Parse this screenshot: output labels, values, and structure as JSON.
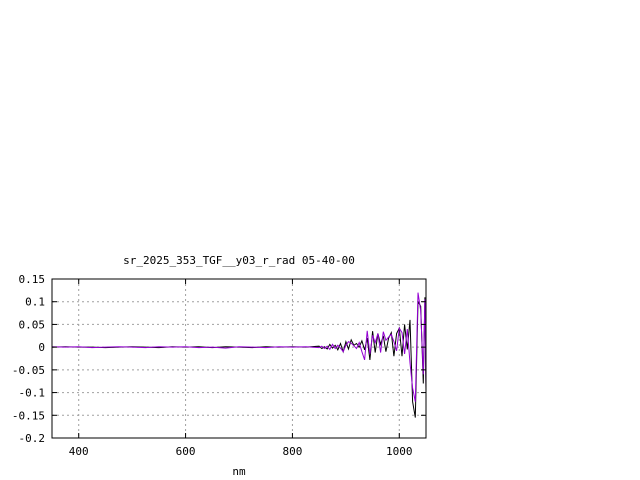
{
  "chart_data": {
    "type": "line",
    "title": "sr_2025_353_TGF__y03_r_rad 05-40-00",
    "xlabel": "nm",
    "ylabel": "",
    "xlim": [
      350,
      1050
    ],
    "ylim": [
      -0.2,
      0.15
    ],
    "xticks": [
      400,
      600,
      800,
      1000
    ],
    "yticks": [
      -0.2,
      -0.15,
      -0.1,
      -0.05,
      0,
      0.05,
      0.1,
      0.15
    ],
    "ytick_labels": [
      "-0.2",
      "-0.15",
      "-0.1",
      "-0.05",
      "0",
      "0.05",
      "0.1",
      "0.15"
    ],
    "grid": true,
    "colors": {
      "series_back": "#000000",
      "series_front": "#9400d3",
      "grid": "#a0a0a0"
    },
    "x": [
      350,
      375,
      400,
      425,
      450,
      475,
      500,
      525,
      550,
      575,
      600,
      625,
      650,
      675,
      700,
      725,
      750,
      775,
      800,
      825,
      850,
      855,
      860,
      865,
      870,
      875,
      880,
      885,
      890,
      895,
      900,
      905,
      910,
      915,
      920,
      925,
      930,
      935,
      940,
      945,
      950,
      955,
      960,
      965,
      970,
      975,
      980,
      985,
      990,
      995,
      1000,
      1005,
      1010,
      1015,
      1020,
      1025,
      1030,
      1035,
      1040,
      1045,
      1048,
      1050
    ],
    "series": [
      {
        "values": [
          0,
          0.001,
          0,
          0,
          -0.001,
          0,
          0.001,
          0,
          -0.001,
          0.001,
          0,
          0.001,
          -0.001,
          0.001,
          0,
          -0.001,
          0.001,
          0,
          0.001,
          0,
          0.002,
          -0.003,
          0.001,
          -0.004,
          0.006,
          -0.002,
          0.004,
          -0.006,
          0.008,
          -0.01,
          0.012,
          -0.004,
          0.016,
          0.004,
          0.008,
          0,
          0.014,
          -0.006,
          0.02,
          -0.028,
          0.035,
          -0.012,
          0.03,
          0.006,
          0.025,
          -0.01,
          0.02,
          0.032,
          -0.02,
          0.03,
          0.042,
          -0.02,
          0.05,
          -0.005,
          0.06,
          -0.12,
          -0.155,
          0.1,
          0.09,
          -0.08,
          0.11,
          -0.1
        ]
      },
      {
        "values": [
          0.001,
          0,
          0.001,
          -0.001,
          0,
          0.001,
          0,
          -0.001,
          0.001,
          0,
          0.001,
          -0.001,
          0,
          -0.002,
          0.001,
          0,
          -0.001,
          0.001,
          0,
          0.001,
          -0.001,
          0.002,
          -0.003,
          0.002,
          -0.005,
          0.006,
          -0.003,
          0.004,
          -0.002,
          -0.01,
          0.004,
          0.012,
          0.009,
          0.003,
          -0.003,
          0.01,
          -0.01,
          -0.028,
          0.036,
          -0.015,
          0.026,
          0.01,
          0.03,
          -0.012,
          0.034,
          0.015,
          0.022,
          0.028,
          0.012,
          -0.008,
          0.042,
          0.032,
          -0.015,
          0.04,
          -0.035,
          -0.09,
          -0.12,
          0.12,
          0.08,
          -0.06,
          0.105,
          -0.09
        ]
      }
    ]
  }
}
